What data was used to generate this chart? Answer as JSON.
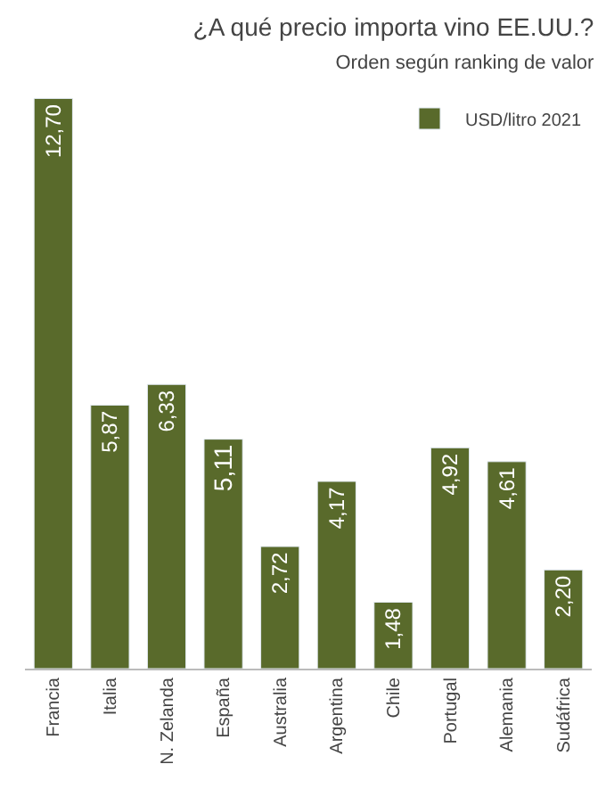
{
  "chart_data": {
    "type": "bar",
    "title": "¿A qué precio importa vino EE.UU.?",
    "subtitle": "Orden según ranking de valor",
    "categories": [
      "Francia",
      "Italia",
      "N. Zelanda",
      "España",
      "Australia",
      "Argentina",
      "Chile",
      "Portugal",
      "Alemania",
      "Sudáfrica"
    ],
    "series": [
      {
        "name": "USD/litro 2021",
        "color": "#596a2b",
        "values": [
          12.7,
          5.87,
          6.33,
          5.11,
          2.72,
          4.17,
          1.48,
          4.92,
          4.61,
          2.2
        ],
        "value_labels": [
          "12,70",
          "5,87",
          "6,33",
          "5,11",
          "2,72",
          "4,17",
          "1,48",
          "4,92",
          "4,61",
          "2,20"
        ]
      }
    ],
    "legend": "top right"
  }
}
